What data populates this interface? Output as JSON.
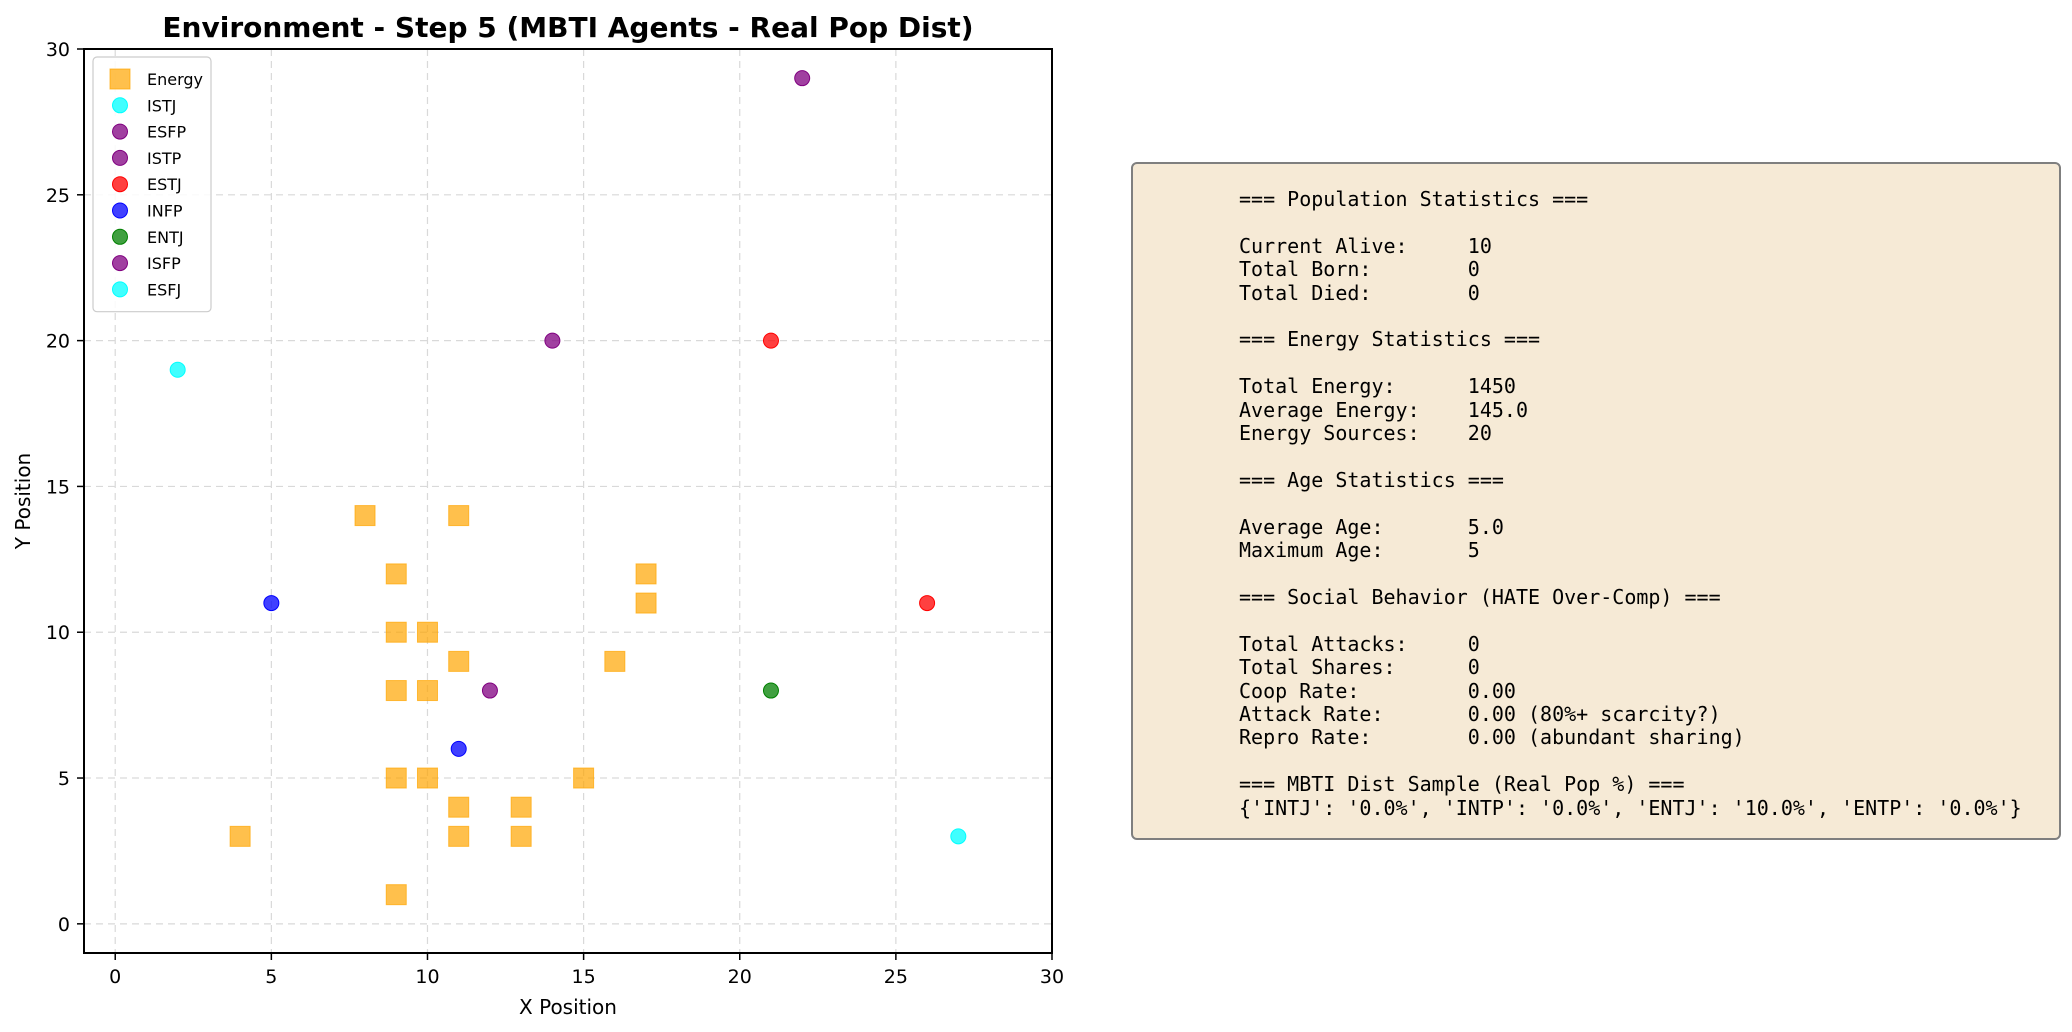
{
  "chart_data": {
    "type": "scatter",
    "title": "Environment - Step 5 (MBTI Agents - Real Pop Dist)",
    "xlabel": "X Position",
    "ylabel": "Y Position",
    "xlim": [
      -1,
      30
    ],
    "ylim": [
      -1,
      30
    ],
    "xticks": [
      0,
      5,
      10,
      15,
      20,
      25,
      30
    ],
    "yticks": [
      0,
      5,
      10,
      15,
      20,
      25,
      30
    ],
    "grid": true,
    "legend_position": "top-left",
    "series": [
      {
        "name": "Energy",
        "marker": "square",
        "color": "#ffa500",
        "points": [
          [
            8,
            14
          ],
          [
            11,
            14
          ],
          [
            9,
            12
          ],
          [
            17,
            12
          ],
          [
            17,
            11
          ],
          [
            9,
            10
          ],
          [
            10,
            10
          ],
          [
            11,
            9
          ],
          [
            16,
            9
          ],
          [
            9,
            8
          ],
          [
            10,
            8
          ],
          [
            9,
            5
          ],
          [
            10,
            5
          ],
          [
            15,
            5
          ],
          [
            11,
            4
          ],
          [
            13,
            4
          ],
          [
            4,
            3
          ],
          [
            11,
            3
          ],
          [
            13,
            3
          ],
          [
            9,
            1
          ]
        ]
      },
      {
        "name": "ISTJ",
        "marker": "circle",
        "color": "#00ffff",
        "points": [
          [
            2,
            19
          ]
        ]
      },
      {
        "name": "ESFP",
        "marker": "circle",
        "color": "#800080",
        "points": [
          [
            22,
            29
          ]
        ]
      },
      {
        "name": "ISTP",
        "marker": "circle",
        "color": "#800080",
        "points": [
          [
            14,
            20
          ]
        ]
      },
      {
        "name": "ESTJ",
        "marker": "circle",
        "color": "#ff0000",
        "points": [
          [
            21,
            20
          ],
          [
            26,
            11
          ]
        ]
      },
      {
        "name": "INFP",
        "marker": "circle",
        "color": "#0000ff",
        "points": [
          [
            5,
            11
          ],
          [
            11,
            6
          ]
        ]
      },
      {
        "name": "ENTJ",
        "marker": "circle",
        "color": "#008000",
        "points": [
          [
            21,
            8
          ]
        ]
      },
      {
        "name": "ISFP",
        "marker": "circle",
        "color": "#800080",
        "points": [
          [
            12,
            8
          ]
        ]
      },
      {
        "name": "ESFJ",
        "marker": "circle",
        "color": "#00ffff",
        "points": [
          [
            27,
            3
          ]
        ]
      }
    ]
  },
  "stats_panel": {
    "lines": [
      "=== Population Statistics ===",
      "",
      "Current Alive:     10",
      "Total Born:        0",
      "Total Died:        0",
      "",
      "=== Energy Statistics ===",
      "",
      "Total Energy:      1450",
      "Average Energy:    145.0",
      "Energy Sources:    20",
      "",
      "=== Age Statistics ===",
      "",
      "Average Age:       5.0",
      "Maximum Age:       5",
      "",
      "=== Social Behavior (HATE Over-Comp) ===",
      "",
      "Total Attacks:     0",
      "Total Shares:      0",
      "Coop Rate:         0.00",
      "Attack Rate:       0.00 (80%+ scarcity?)",
      "Repro Rate:        0.00 (abundant sharing)",
      "",
      "=== MBTI Dist Sample (Real Pop %) ===",
      "{'INTJ': '0.0%', 'INTP': '0.0%', 'ENTJ': '10.0%', 'ENTP': '0.0%'}"
    ],
    "background": "#f6ead6",
    "border": "#7f7f7f"
  }
}
